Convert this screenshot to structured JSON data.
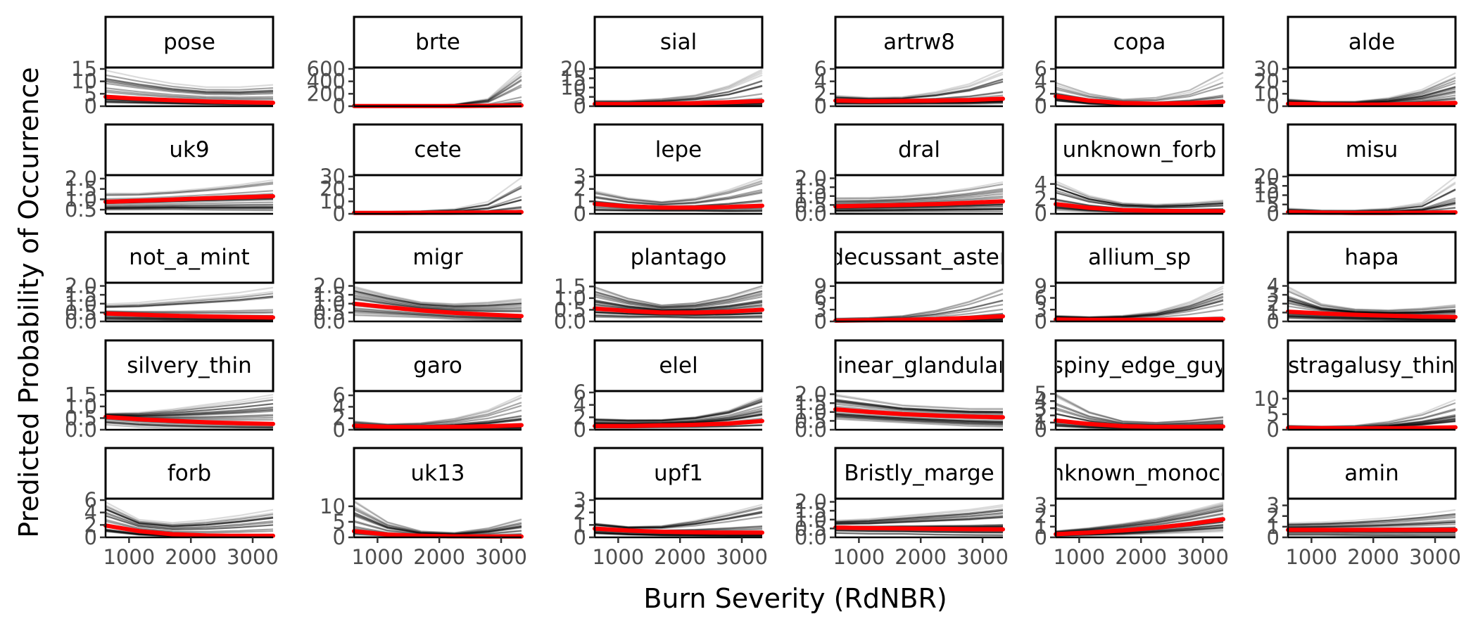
{
  "chart_data": {
    "type": "line",
    "xlabel": "Burn Severity (RdNBR)",
    "ylabel": "Predicted Probability of Occurrence",
    "x_range": [
      620,
      3330
    ],
    "x_ticks": [
      1000,
      2000,
      3000
    ],
    "x_tick_labels": [
      "1000",
      "2000",
      "3000"
    ],
    "colors": {
      "draws": "#000000",
      "mean": "#ff0000",
      "strip_border": "#000000",
      "tick_text": "#4d4d4d"
    },
    "facets": [
      {
        "name": "pose",
        "y_ticks": [
          0,
          5,
          10,
          15
        ],
        "y_tick_labels": [
          "0",
          "5",
          "10",
          "15"
        ],
        "ylim": [
          0,
          15
        ],
        "mean": [
          3.8,
          3.0,
          2.4,
          1.9,
          1.6,
          1.4
        ],
        "lower": [
          1.2,
          1.0,
          0.8,
          0.6,
          0.5,
          0.4
        ],
        "upper": [
          15,
          12,
          9.5,
          8,
          8,
          9
        ]
      },
      {
        "name": "brte",
        "y_ticks": [
          0,
          200,
          400,
          600
        ],
        "y_tick_labels": [
          "0",
          "200",
          "400",
          "600"
        ],
        "ylim": [
          0,
          600
        ],
        "mean": [
          2,
          2,
          2,
          3,
          6,
          14
        ],
        "lower": [
          0,
          0,
          0,
          0,
          1,
          2
        ],
        "upper": [
          10,
          8,
          10,
          30,
          120,
          600
        ]
      },
      {
        "name": "sial",
        "y_ticks": [
          0,
          5,
          10,
          15,
          20
        ],
        "y_tick_labels": [
          "0",
          "5",
          "10",
          "15",
          "20"
        ],
        "ylim": [
          0,
          20
        ],
        "mean": [
          1.2,
          1.1,
          1.3,
          1.6,
          2.1,
          2.8
        ],
        "lower": [
          0.2,
          0.2,
          0.3,
          0.3,
          0.3,
          0.3
        ],
        "upper": [
          3,
          3,
          4,
          6,
          11,
          20
        ]
      },
      {
        "name": "artrw8",
        "y_ticks": [
          0,
          2,
          4,
          6
        ],
        "y_tick_labels": [
          "0",
          "2",
          "4",
          "6"
        ],
        "ylim": [
          0,
          6
        ],
        "mean": [
          0.9,
          0.8,
          0.85,
          0.9,
          1.0,
          1.2
        ],
        "lower": [
          0.3,
          0.3,
          0.3,
          0.3,
          0.3,
          0.4
        ],
        "upper": [
          1.7,
          1.4,
          1.5,
          2.3,
          3.6,
          6.0
        ]
      },
      {
        "name": "copa",
        "y_ticks": [
          0,
          2,
          4,
          6
        ],
        "y_tick_labels": [
          "0",
          "2",
          "4",
          "6"
        ],
        "ylim": [
          0,
          6
        ],
        "mean": [
          1.6,
          0.9,
          0.5,
          0.4,
          0.5,
          0.7
        ],
        "lower": [
          0.8,
          0.3,
          0.1,
          0.1,
          0.1,
          0.1
        ],
        "upper": [
          3.8,
          2.0,
          1.1,
          1.4,
          2.6,
          5.5
        ]
      },
      {
        "name": "alde",
        "y_ticks": [
          0,
          10,
          20,
          30
        ],
        "y_tick_labels": [
          "0",
          "10",
          "20",
          "30"
        ],
        "ylim": [
          0,
          30
        ],
        "mean": [
          2.0,
          1.5,
          1.3,
          1.4,
          1.9,
          2.6
        ],
        "lower": [
          0.5,
          0.3,
          0.2,
          0.2,
          0.2,
          0.3
        ],
        "upper": [
          6,
          4,
          4,
          7,
          14,
          28
        ]
      },
      {
        "name": "uk9",
        "y_ticks": [
          0.5,
          1.0,
          1.5,
          2.0
        ],
        "y_tick_labels": [
          "0.5",
          "1.0",
          "1.5",
          "2.0"
        ],
        "ylim": [
          0.3,
          2.1
        ],
        "mean": [
          0.88,
          0.93,
          0.99,
          1.05,
          1.1,
          1.15
        ],
        "lower": [
          0.45,
          0.45,
          0.45,
          0.42,
          0.4,
          0.38
        ],
        "upper": [
          1.35,
          1.35,
          1.45,
          1.6,
          1.8,
          2.05
        ]
      },
      {
        "name": "cete",
        "y_ticks": [
          0,
          10,
          20,
          30
        ],
        "y_tick_labels": [
          "0",
          "10",
          "20",
          "30"
        ],
        "ylim": [
          0,
          30
        ],
        "mean": [
          0.7,
          0.7,
          0.8,
          0.9,
          1.1,
          1.4
        ],
        "lower": [
          0.1,
          0.1,
          0.1,
          0.1,
          0.1,
          0.1
        ],
        "upper": [
          2,
          2,
          2.5,
          4,
          10,
          30
        ]
      },
      {
        "name": "lepe",
        "y_ticks": [
          0,
          1,
          2,
          3
        ],
        "y_tick_labels": [
          "0",
          "1",
          "2",
          "3"
        ],
        "ylim": [
          0,
          3
        ],
        "mean": [
          0.8,
          0.6,
          0.5,
          0.5,
          0.55,
          0.65
        ],
        "lower": [
          0.2,
          0.2,
          0.2,
          0.2,
          0.15,
          0.15
        ],
        "upper": [
          1.9,
          1.3,
          1.0,
          1.3,
          2.0,
          3.0
        ]
      },
      {
        "name": "dral",
        "y_ticks": [
          0.0,
          0.5,
          1.0,
          1.5,
          2.0
        ],
        "y_tick_labels": [
          "0.0",
          "0.5",
          "1.0",
          "1.5",
          "2.0"
        ],
        "ylim": [
          0,
          2.1
        ],
        "mean": [
          0.42,
          0.46,
          0.5,
          0.55,
          0.62,
          0.7
        ],
        "lower": [
          0.1,
          0.1,
          0.1,
          0.1,
          0.1,
          0.1
        ],
        "upper": [
          1.0,
          1.0,
          1.1,
          1.3,
          1.6,
          2.0
        ]
      },
      {
        "name": "unknown_forb",
        "y_ticks": [
          0,
          2,
          4
        ],
        "y_tick_labels": [
          "0",
          "2",
          "4"
        ],
        "ylim": [
          0,
          5
        ],
        "mean": [
          1.3,
          0.8,
          0.5,
          0.4,
          0.35,
          0.35
        ],
        "lower": [
          0.4,
          0.2,
          0.1,
          0.05,
          0.05,
          0.05
        ],
        "upper": [
          4.5,
          2.5,
          1.5,
          1.3,
          1.5,
          1.9
        ]
      },
      {
        "name": "misu",
        "y_ticks": [
          0,
          5,
          10,
          15,
          20
        ],
        "y_tick_labels": [
          "0",
          "5",
          "10",
          "15",
          "20"
        ],
        "ylim": [
          0,
          20
        ],
        "mean": [
          0.9,
          0.6,
          0.5,
          0.5,
          0.6,
          0.8
        ],
        "lower": [
          0.2,
          0.1,
          0.1,
          0.1,
          0.1,
          0.1
        ],
        "upper": [
          3,
          2,
          2,
          3,
          6,
          20
        ]
      },
      {
        "name": "not_a_mint",
        "y_ticks": [
          0.0,
          0.5,
          1.0,
          1.5,
          2.0
        ],
        "y_tick_labels": [
          "0.0",
          "0.5",
          "1.0",
          "1.5",
          "2.0"
        ],
        "ylim": [
          0,
          2.1
        ],
        "mean": [
          0.45,
          0.38,
          0.32,
          0.28,
          0.25,
          0.22
        ],
        "lower": [
          0.05,
          0.05,
          0.04,
          0.03,
          0.02,
          0.02
        ],
        "upper": [
          1.0,
          1.1,
          1.3,
          1.5,
          1.7,
          2.0
        ]
      },
      {
        "name": "migr",
        "y_ticks": [
          0.0,
          0.5,
          1.0,
          1.5,
          2.0
        ],
        "y_tick_labels": [
          "0.0",
          "0.5",
          "1.0",
          "1.5",
          "2.0"
        ],
        "ylim": [
          0,
          2.1
        ],
        "mean": [
          1.0,
          0.8,
          0.62,
          0.48,
          0.38,
          0.3
        ],
        "lower": [
          0.3,
          0.25,
          0.2,
          0.1,
          0.05,
          0.02
        ],
        "upper": [
          2.0,
          1.5,
          1.1,
          1.0,
          1.1,
          1.3
        ]
      },
      {
        "name": "plantago",
        "y_ticks": [
          0.0,
          0.5,
          1.0,
          1.5
        ],
        "y_tick_labels": [
          "0.0",
          "0.5",
          "1.0",
          "1.5"
        ],
        "ylim": [
          0,
          1.6
        ],
        "mean": [
          0.55,
          0.45,
          0.38,
          0.38,
          0.42,
          0.5
        ],
        "lower": [
          0.05,
          0.05,
          0.1,
          0.05,
          0.03,
          0.02
        ],
        "upper": [
          1.5,
          1.0,
          0.7,
          0.8,
          1.1,
          1.55
        ]
      },
      {
        "name": "decussant_aster",
        "y_ticks": [
          0,
          3,
          6,
          9
        ],
        "y_tick_labels": [
          "0",
          "3",
          "6",
          "9"
        ],
        "ylim": [
          0,
          9.5
        ],
        "mean": [
          0.2,
          0.3,
          0.4,
          0.6,
          0.9,
          1.3
        ],
        "lower": [
          0.05,
          0.05,
          0.05,
          0.05,
          0.05,
          0.05
        ],
        "upper": [
          0.8,
          1.0,
          1.5,
          3.0,
          5.5,
          9.0
        ]
      },
      {
        "name": "allium_sp",
        "y_ticks": [
          0,
          3,
          6,
          9
        ],
        "y_tick_labels": [
          "0",
          "3",
          "6",
          "9"
        ],
        "ylim": [
          0,
          9.5
        ],
        "mean": [
          0.5,
          0.4,
          0.4,
          0.4,
          0.5,
          0.6
        ],
        "lower": [
          0.1,
          0.1,
          0.1,
          0.05,
          0.05,
          0.05
        ],
        "upper": [
          1.5,
          1.2,
          1.5,
          2.5,
          5.0,
          9.0
        ]
      },
      {
        "name": "hapa",
        "y_ticks": [
          0,
          1,
          2,
          3,
          4
        ],
        "y_tick_labels": [
          "0",
          "1",
          "2",
          "3",
          "4"
        ],
        "ylim": [
          0,
          4.2
        ],
        "mean": [
          1.1,
          0.9,
          0.75,
          0.65,
          0.55,
          0.5
        ],
        "lower": [
          0.3,
          0.2,
          0.15,
          0.1,
          0.05,
          0.05
        ],
        "upper": [
          4.0,
          2.0,
          1.4,
          1.3,
          1.5,
          1.9
        ]
      },
      {
        "name": "silvery_thin",
        "y_ticks": [
          0.0,
          0.5,
          1.0,
          1.5
        ],
        "y_tick_labels": [
          "0.0",
          "0.5",
          "1.0",
          "1.5"
        ],
        "ylim": [
          0,
          1.6
        ],
        "mean": [
          0.55,
          0.45,
          0.38,
          0.32,
          0.28,
          0.25
        ],
        "lower": [
          0.2,
          0.1,
          0.05,
          0.03,
          0.02,
          0.01
        ],
        "upper": [
          0.7,
          0.75,
          0.9,
          1.1,
          1.3,
          1.55
        ]
      },
      {
        "name": "garo",
        "y_ticks": [
          0,
          2,
          4,
          6
        ],
        "y_tick_labels": [
          "0",
          "2",
          "4",
          "6"
        ],
        "ylim": [
          0,
          6.5
        ],
        "mean": [
          0.7,
          0.5,
          0.45,
          0.5,
          0.6,
          0.8
        ],
        "lower": [
          0.2,
          0.1,
          0.1,
          0.1,
          0.1,
          0.1
        ],
        "upper": [
          1.5,
          1.0,
          1.2,
          2.0,
          3.5,
          6.2
        ]
      },
      {
        "name": "elel",
        "y_ticks": [
          0,
          2,
          4,
          6
        ],
        "y_tick_labels": [
          "0",
          "2",
          "4",
          "6"
        ],
        "ylim": [
          0,
          6
        ],
        "mean": [
          0.6,
          0.6,
          0.7,
          0.8,
          1.0,
          1.4
        ],
        "lower": [
          0.1,
          0.1,
          0.1,
          0.1,
          0.1,
          0.1
        ],
        "upper": [
          2.0,
          1.8,
          1.8,
          2.3,
          3.5,
          6.0
        ]
      },
      {
        "name": "linear_glandular",
        "y_ticks": [
          0.0,
          0.5,
          1.0,
          1.5,
          2.0
        ],
        "y_tick_labels": [
          "0.0",
          "0.5",
          "1.0",
          "1.5",
          "2.0"
        ],
        "ylim": [
          0,
          2.1
        ],
        "mean": [
          1.15,
          1.0,
          0.88,
          0.8,
          0.74,
          0.7
        ],
        "lower": [
          0.6,
          0.5,
          0.4,
          0.3,
          0.2,
          0.15
        ],
        "upper": [
          2.0,
          1.7,
          1.4,
          1.3,
          1.2,
          1.2
        ]
      },
      {
        "name": "spiny_edge_guy",
        "y_ticks": [
          0,
          1,
          2,
          3,
          4,
          5
        ],
        "y_tick_labels": [
          "0",
          "1",
          "2",
          "3",
          "4",
          "5"
        ],
        "ylim": [
          0,
          5.2
        ],
        "mean": [
          1.3,
          0.8,
          0.5,
          0.4,
          0.4,
          0.45
        ],
        "lower": [
          0.4,
          0.2,
          0.1,
          0.05,
          0.05,
          0.05
        ],
        "upper": [
          5.0,
          2.5,
          1.2,
          1.0,
          1.3,
          1.8
        ]
      },
      {
        "name": "astragalusy_thing",
        "y_ticks": [
          0,
          5,
          10
        ],
        "y_tick_labels": [
          "0",
          "5",
          "10"
        ],
        "ylim": [
          0,
          12
        ],
        "mean": [
          0.6,
          0.5,
          0.45,
          0.5,
          0.6,
          0.8
        ],
        "lower": [
          0.1,
          0.1,
          0.1,
          0.05,
          0.05,
          0.05
        ],
        "upper": [
          1.5,
          1.2,
          1.5,
          3.0,
          6.0,
          11.0
        ]
      },
      {
        "name": "forb",
        "y_ticks": [
          0,
          2,
          4,
          6
        ],
        "y_tick_labels": [
          "0",
          "2",
          "4",
          "6"
        ],
        "ylim": [
          0,
          6
        ],
        "mean": [
          1.9,
          1.0,
          0.5,
          0.3,
          0.25,
          0.25
        ],
        "lower": [
          0.8,
          0.3,
          0.1,
          0.05,
          0.03,
          0.02
        ],
        "upper": [
          6.0,
          3.0,
          2.5,
          3.0,
          3.8,
          4.8
        ]
      },
      {
        "name": "uk13",
        "y_ticks": [
          0,
          5,
          10
        ],
        "y_tick_labels": [
          "0",
          "5",
          "10"
        ],
        "ylim": [
          0,
          12
        ],
        "mean": [
          2.0,
          0.9,
          0.5,
          0.35,
          0.3,
          0.3
        ],
        "lower": [
          0.3,
          0.1,
          0.05,
          0.03,
          0.02,
          0.02
        ],
        "upper": [
          12,
          5,
          2.0,
          1.5,
          3.0,
          6.0
        ]
      },
      {
        "name": "upf1",
        "y_ticks": [
          0,
          1,
          2,
          3
        ],
        "y_tick_labels": [
          "0",
          "1",
          "2",
          "3"
        ],
        "ylim": [
          0,
          3
        ],
        "mean": [
          0.7,
          0.55,
          0.45,
          0.4,
          0.38,
          0.38
        ],
        "lower": [
          0.2,
          0.1,
          0.05,
          0.05,
          0.03,
          0.03
        ],
        "upper": [
          1.2,
          0.9,
          1.0,
          1.5,
          2.2,
          3.0
        ]
      },
      {
        "name": "Bristly_marge",
        "y_ticks": [
          0.0,
          0.5,
          1.0,
          1.5,
          2.0
        ],
        "y_tick_labels": [
          "0.0",
          "0.5",
          "1.0",
          "1.5",
          "2.0"
        ],
        "ylim": [
          0,
          2.1
        ],
        "mean": [
          0.55,
          0.52,
          0.5,
          0.48,
          0.46,
          0.45
        ],
        "lower": [
          0.15,
          0.1,
          0.1,
          0.05,
          0.03,
          0.02
        ],
        "upper": [
          1.0,
          1.1,
          1.3,
          1.5,
          1.7,
          2.0
        ]
      },
      {
        "name": "unknown_monocot",
        "y_ticks": [
          0,
          1,
          2,
          3
        ],
        "y_tick_labels": [
          "0",
          "1",
          "2",
          "3"
        ],
        "ylim": [
          0,
          3.5
        ],
        "mean": [
          0.3,
          0.45,
          0.65,
          0.9,
          1.25,
          1.7
        ],
        "lower": [
          0.1,
          0.15,
          0.2,
          0.3,
          0.4,
          0.5
        ],
        "upper": [
          0.6,
          0.9,
          1.3,
          1.8,
          2.5,
          3.3
        ]
      },
      {
        "name": "amin",
        "y_ticks": [
          0,
          1,
          2,
          3
        ],
        "y_tick_labels": [
          "0",
          "1",
          "2",
          "3"
        ],
        "ylim": [
          0,
          3.5
        ],
        "mean": [
          0.7,
          0.7,
          0.7,
          0.7,
          0.7,
          0.7
        ],
        "lower": [
          0.2,
          0.2,
          0.15,
          0.1,
          0.05,
          0.05
        ],
        "upper": [
          1.5,
          1.6,
          1.8,
          2.1,
          2.5,
          3.0
        ]
      }
    ]
  }
}
